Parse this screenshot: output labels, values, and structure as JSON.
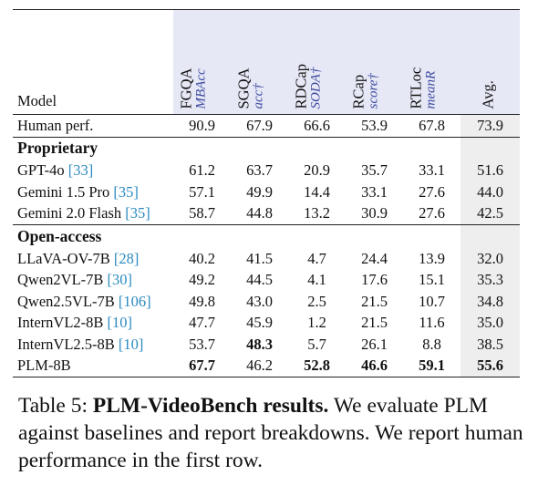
{
  "table": {
    "model_header": "Model",
    "columns": [
      {
        "name": "FGQA",
        "metric": "MBAcc"
      },
      {
        "name": "SGQA",
        "metric": "acc†"
      },
      {
        "name": "RDCap",
        "metric": "SODA†"
      },
      {
        "name": "RCap",
        "metric": "score†"
      },
      {
        "name": "RTLoc",
        "metric": "meanR"
      },
      {
        "name": "Avg.",
        "metric": ""
      }
    ],
    "human_row": {
      "model": "Human perf.",
      "values": [
        "90.9",
        "67.9",
        "66.6",
        "53.9",
        "67.8",
        "73.9"
      ]
    },
    "sections": [
      {
        "title": "Proprietary",
        "rows": [
          {
            "model": "GPT-4o",
            "ref": "[33]",
            "values": [
              "61.2",
              "63.7",
              "20.9",
              "35.7",
              "33.1",
              "51.6"
            ]
          },
          {
            "model": "Gemini 1.5 Pro",
            "ref": "[35]",
            "values": [
              "57.1",
              "49.9",
              "14.4",
              "33.1",
              "27.6",
              "44.0"
            ]
          },
          {
            "model": "Gemini 2.0 Flash",
            "ref": "[35]",
            "values": [
              "58.7",
              "44.8",
              "13.2",
              "30.9",
              "27.6",
              "42.5"
            ]
          }
        ]
      },
      {
        "title": "Open-access",
        "rows": [
          {
            "model": "LLaVA-OV-7B",
            "ref": "[28]",
            "values": [
              "40.2",
              "41.5",
              "4.7",
              "24.4",
              "13.9",
              "32.0"
            ]
          },
          {
            "model": "Qwen2VL-7B",
            "ref": "[30]",
            "values": [
              "49.2",
              "44.5",
              "4.1",
              "17.6",
              "15.1",
              "35.3"
            ]
          },
          {
            "model": "Qwen2.5VL-7B",
            "ref": "[106]",
            "values": [
              "49.8",
              "43.0",
              "2.5",
              "21.5",
              "10.7",
              "34.8"
            ]
          },
          {
            "model": "InternVL2-8B",
            "ref": "[10]",
            "values": [
              "47.7",
              "45.9",
              "1.2",
              "21.5",
              "11.6",
              "35.0"
            ]
          },
          {
            "model": "InternVL2.5-8B",
            "ref": "[10]",
            "values": [
              "53.7",
              "48.3",
              "5.7",
              "26.1",
              "8.8",
              "38.5"
            ],
            "bold": [
              1
            ]
          },
          {
            "model": "PLM-8B",
            "ref": "",
            "values": [
              "67.7",
              "46.2",
              "52.8",
              "46.6",
              "59.1",
              "55.6"
            ],
            "bold": [
              0,
              2,
              3,
              4,
              5
            ]
          }
        ]
      }
    ]
  },
  "caption": {
    "label": "Table 5:",
    "lead": "PLM-VideoBench results.",
    "text": "We evaluate PLM against baselines and report breakdowns. We report human performance in the first row."
  }
}
